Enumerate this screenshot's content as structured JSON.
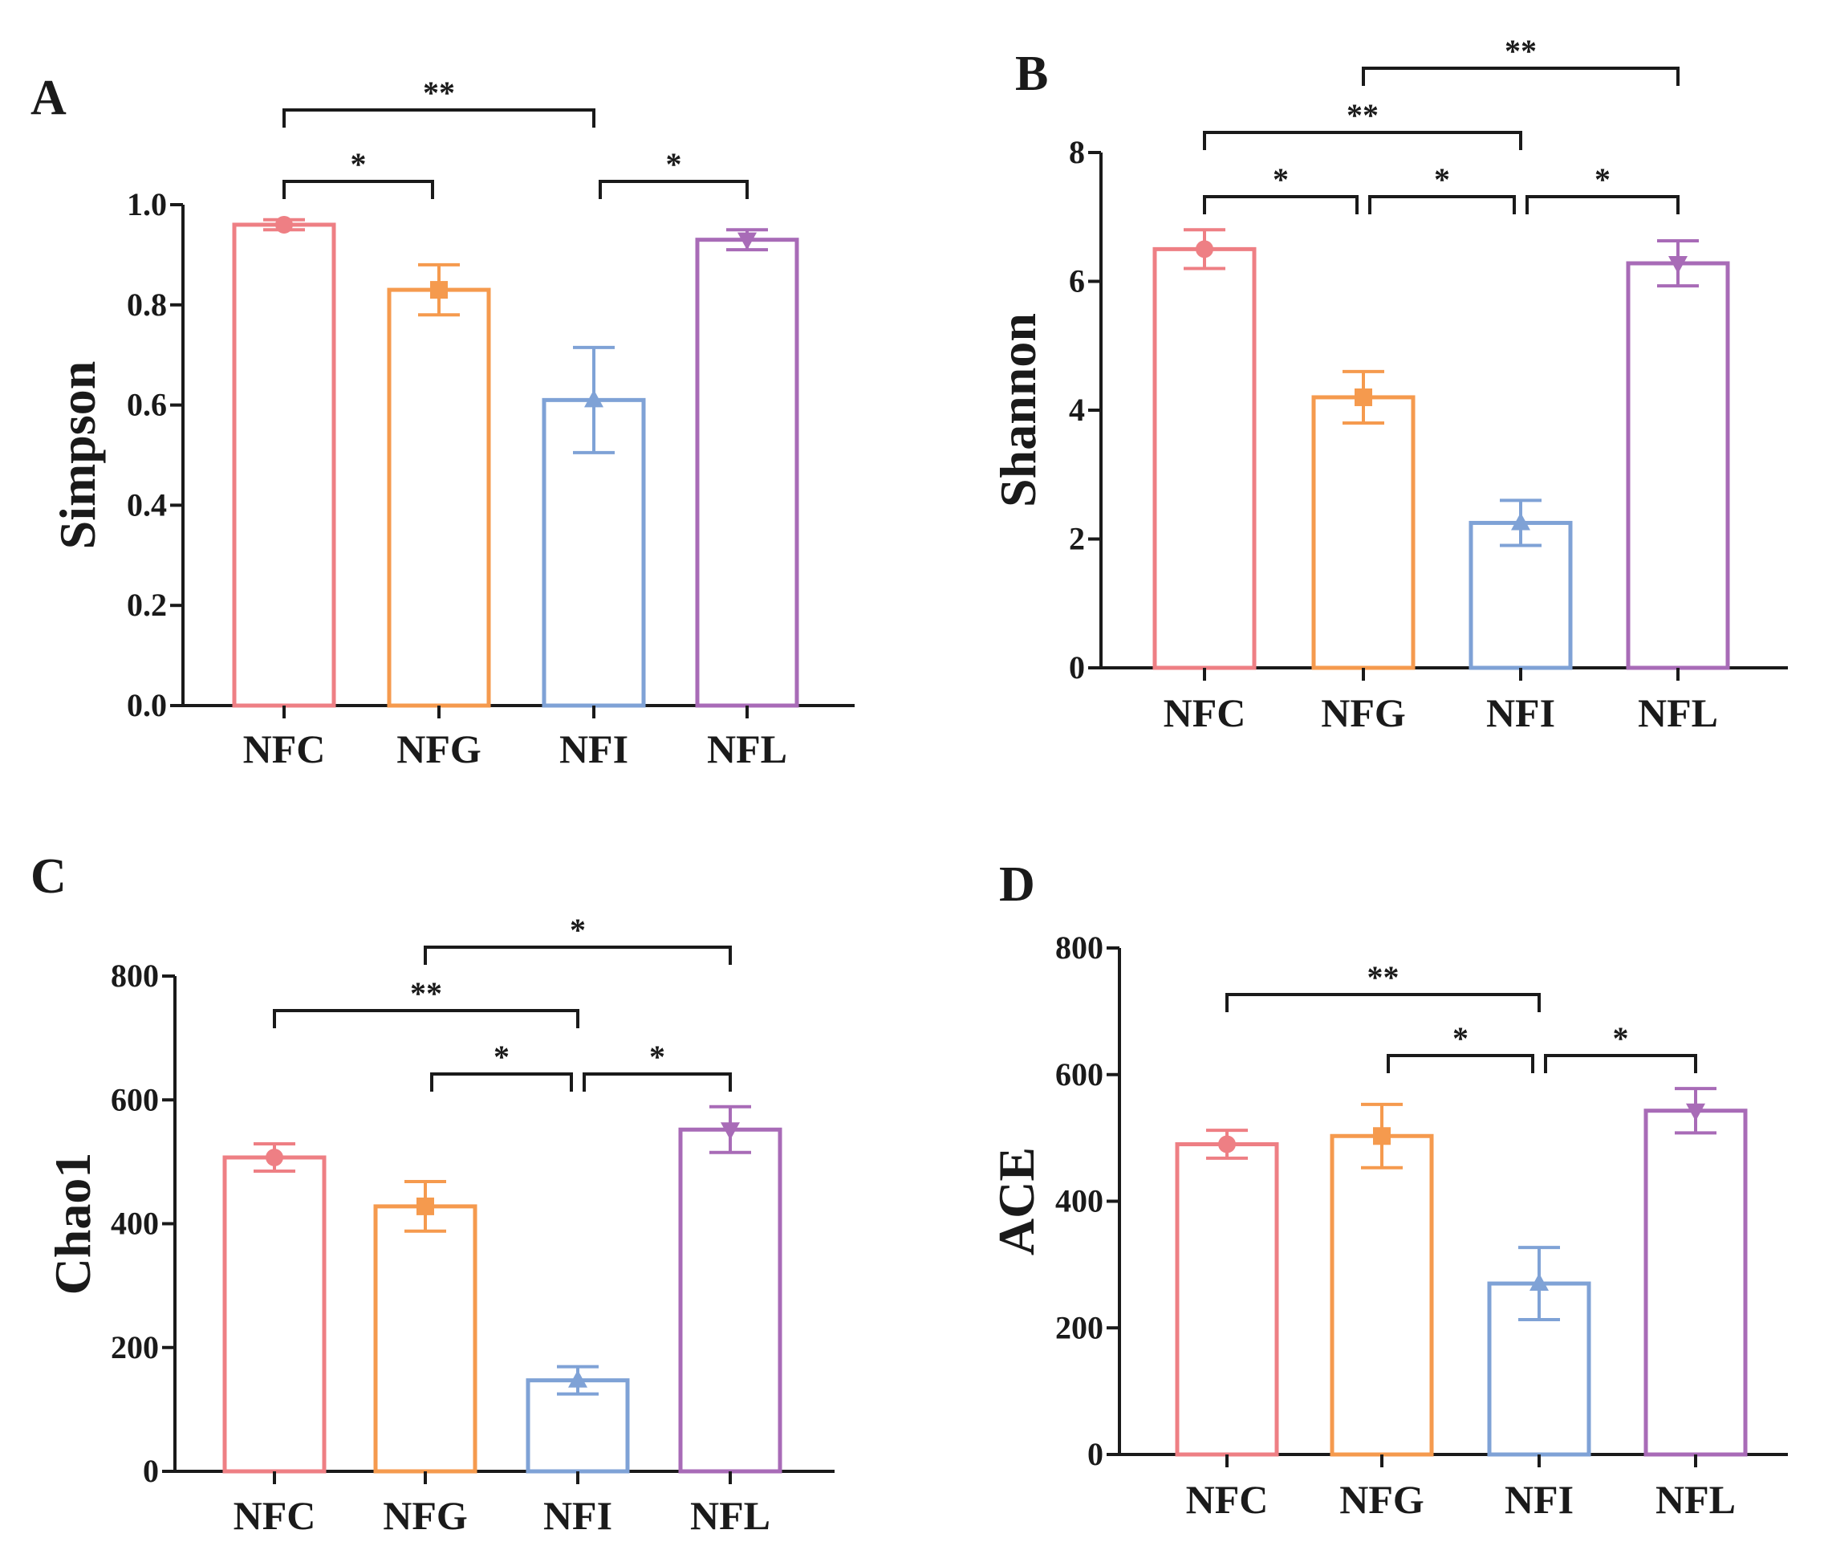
{
  "chart_data": [
    {
      "panel": "A",
      "type": "bar",
      "ylabel": "Simpson",
      "ylim": [
        0,
        1.0
      ],
      "yticks": [
        "0.0",
        "0.2",
        "0.4",
        "0.6",
        "0.8",
        "1.0"
      ],
      "categories": [
        "NFC",
        "NFG",
        "NFI",
        "NFL"
      ],
      "values": [
        0.96,
        0.83,
        0.61,
        0.93
      ],
      "errors": [
        0.01,
        0.05,
        0.105,
        0.02
      ],
      "significance": [
        {
          "from": 0,
          "to": 1,
          "label": "*",
          "level": 1
        },
        {
          "from": 2,
          "to": 3,
          "label": "*",
          "level": 1
        },
        {
          "from": 0,
          "to": 2,
          "label": "**",
          "level": 2
        }
      ]
    },
    {
      "panel": "B",
      "type": "bar",
      "ylabel": "Shannon",
      "ylim": [
        0,
        8
      ],
      "yticks": [
        "0",
        "2",
        "4",
        "6",
        "8"
      ],
      "categories": [
        "NFC",
        "NFG",
        "NFI",
        "NFL"
      ],
      "values": [
        6.5,
        4.2,
        2.25,
        6.28
      ],
      "errors": [
        0.3,
        0.4,
        0.35,
        0.35
      ],
      "significance": [
        {
          "from": 0,
          "to": 1,
          "label": "*",
          "level": 1
        },
        {
          "from": 1,
          "to": 2,
          "label": "*",
          "level": 1
        },
        {
          "from": 2,
          "to": 3,
          "label": "*",
          "level": 1
        },
        {
          "from": 0,
          "to": 2,
          "label": "**",
          "level": 2
        },
        {
          "from": 1,
          "to": 3,
          "label": "**",
          "level": 3
        }
      ]
    },
    {
      "panel": "C",
      "type": "bar",
      "ylabel": "Chao1",
      "ylim": [
        0,
        800
      ],
      "yticks": [
        "0",
        "200",
        "400",
        "600",
        "800"
      ],
      "categories": [
        "NFC",
        "NFG",
        "NFI",
        "NFL"
      ],
      "values": [
        507,
        428,
        147,
        552
      ],
      "errors": [
        22,
        40,
        22,
        37
      ],
      "significance": [
        {
          "from": 1,
          "to": 2,
          "label": "*",
          "level": 1
        },
        {
          "from": 2,
          "to": 3,
          "label": "*",
          "level": 1
        },
        {
          "from": 0,
          "to": 2,
          "label": "**",
          "level": 2
        },
        {
          "from": 1,
          "to": 3,
          "label": "*",
          "level": 3
        }
      ]
    },
    {
      "panel": "D",
      "type": "bar",
      "ylabel": "ACE",
      "ylim": [
        0,
        800
      ],
      "yticks": [
        "0",
        "200",
        "400",
        "600",
        "800"
      ],
      "categories": [
        "NFC",
        "NFG",
        "NFI",
        "NFL"
      ],
      "values": [
        490,
        503,
        270,
        543
      ],
      "errors": [
        22,
        50,
        57,
        35
      ],
      "significance": [
        {
          "from": 1,
          "to": 2,
          "label": "*",
          "level": 1
        },
        {
          "from": 2,
          "to": 3,
          "label": "*",
          "level": 1
        },
        {
          "from": 0,
          "to": 2,
          "label": "**",
          "level": 2
        }
      ]
    }
  ],
  "colors": {
    "series": [
      "#ee7f84",
      "#f59a4e",
      "#7fa2d6",
      "#a86bb7"
    ],
    "axis": "#1a1a1a",
    "bracket": "#1a1a1a"
  },
  "marker_shapes": [
    "circle",
    "square",
    "triangle-up",
    "triangle-down"
  ]
}
